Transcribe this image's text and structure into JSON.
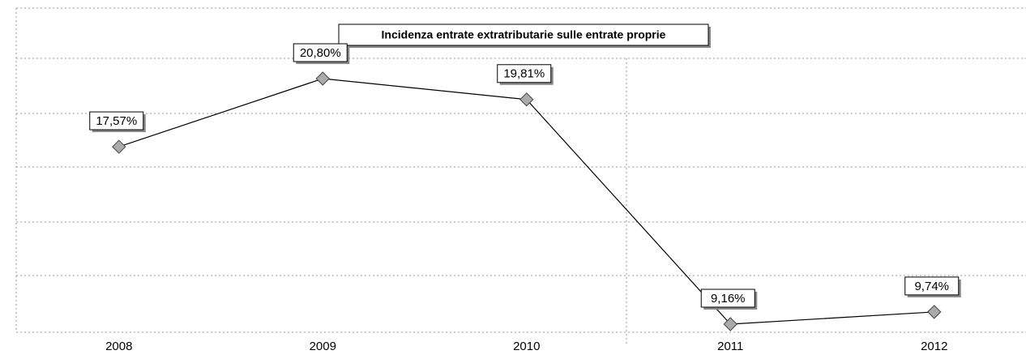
{
  "chart_data": {
    "type": "line",
    "title": "Incidenza entrate extratributarie sulle entrate proprie",
    "categories": [
      "2008",
      "2009",
      "2010",
      "2011",
      "2012"
    ],
    "series": [
      {
        "name": null,
        "color": "#000000",
        "values": [
          17.57,
          20.8,
          19.81,
          9.16,
          9.74
        ],
        "value_labels": [
          "17,57%",
          "20,80%",
          "19,81%",
          "9,16%",
          "9,74%"
        ]
      }
    ]
  }
}
